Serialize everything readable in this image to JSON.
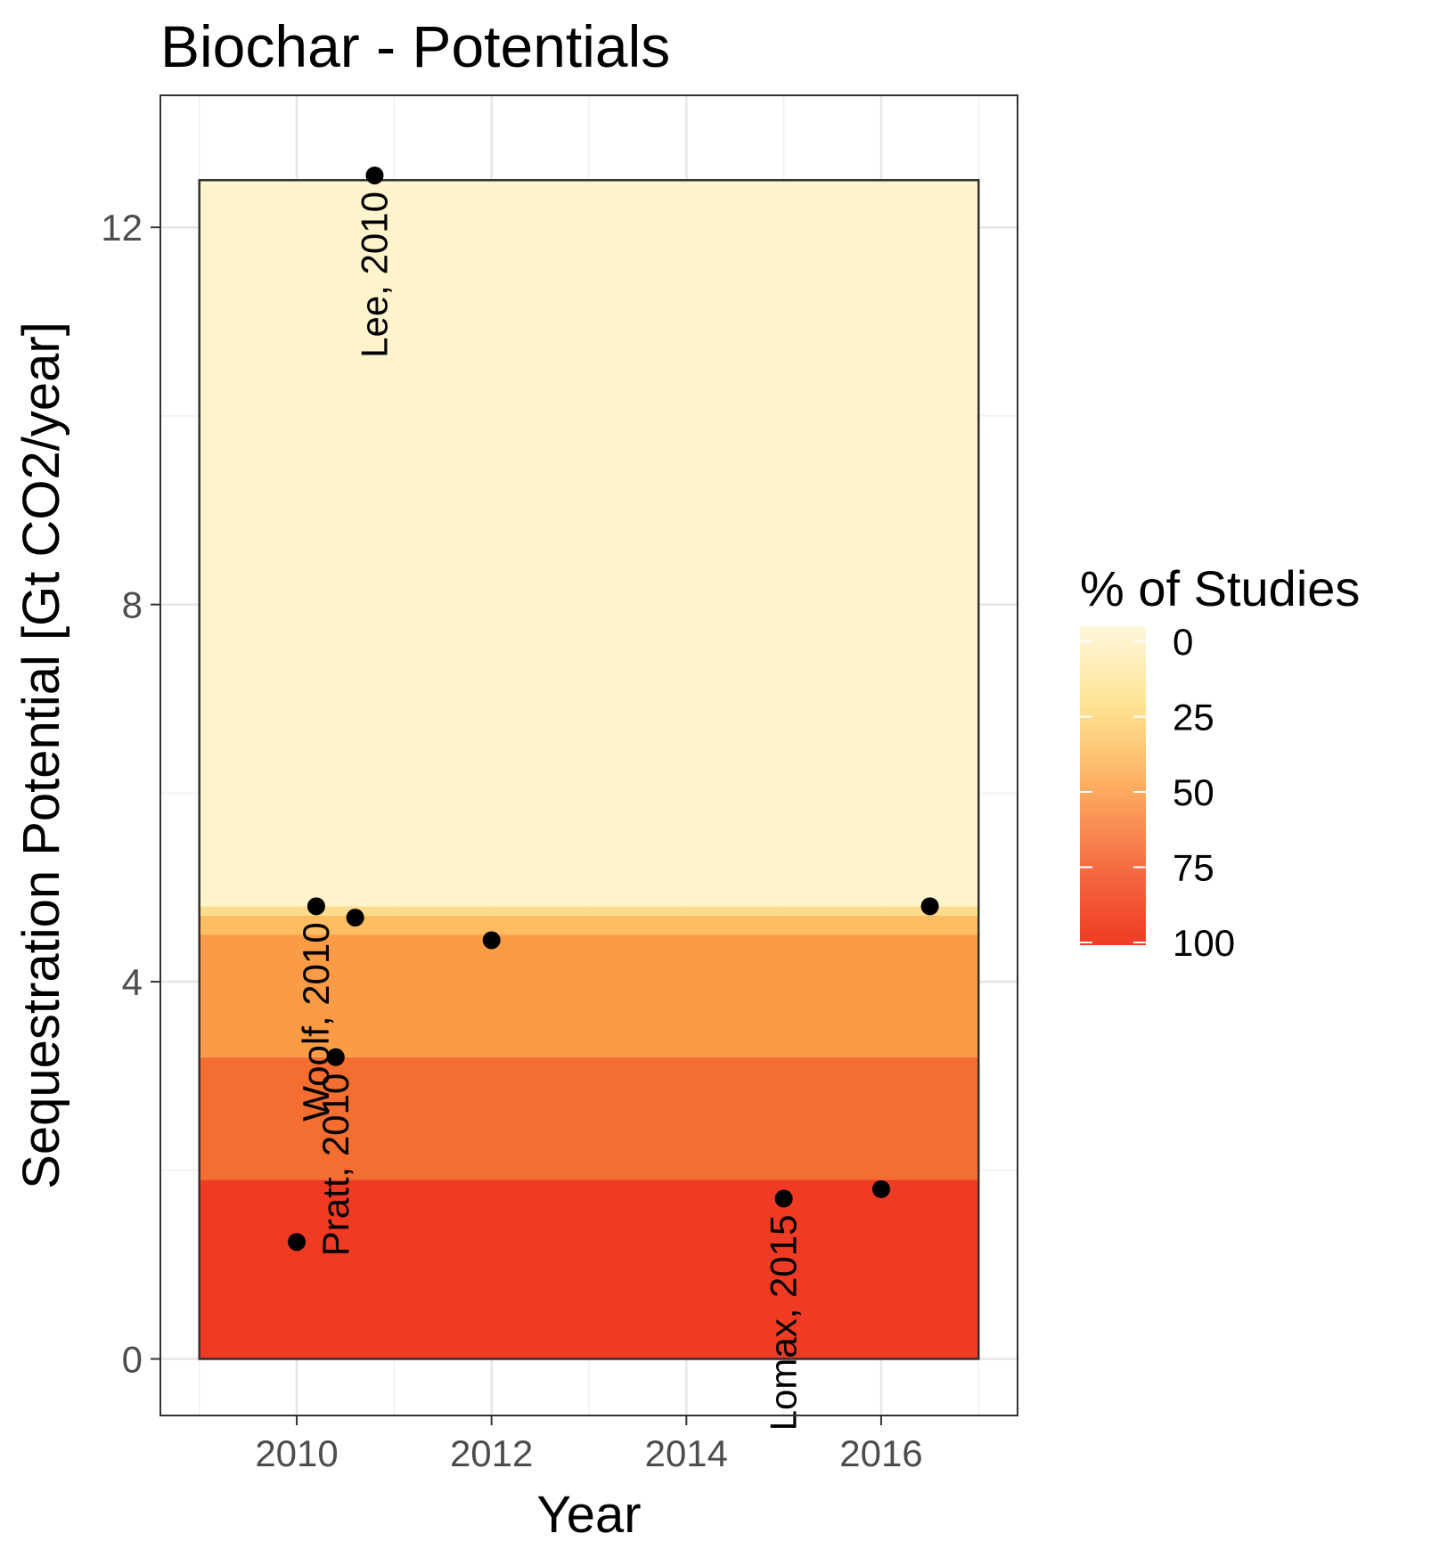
{
  "chart_data": {
    "type": "scatter",
    "title": "Biochar - Potentials",
    "xlabel": "Year",
    "ylabel": "Sequestration Potential [Gt CO2/year]",
    "xlim": [
      2008.6,
      2017.4
    ],
    "ylim": [
      -0.6,
      13.4
    ],
    "xticks": [
      2010,
      2012,
      2014,
      2016
    ],
    "yticks": [
      0,
      4,
      8,
      12
    ],
    "grid": true,
    "legend_position": "right",
    "legend": {
      "title": "% of Studies",
      "ticks": [
        "0",
        "25",
        "50",
        "75",
        "100"
      ],
      "colors": [
        "#FFF7DC",
        "#FEE391",
        "#FDAE61",
        "#F46D43",
        "#EF3B24"
      ]
    },
    "bands": [
      {
        "ymin": 0,
        "ymax": 1.9,
        "color": "#EF3B24"
      },
      {
        "ymin": 1.9,
        "ymax": 3.2,
        "color": "#F46D31"
      },
      {
        "ymin": 3.2,
        "ymax": 4.5,
        "color": "#FB9B45"
      },
      {
        "ymin": 4.5,
        "ymax": 4.7,
        "color": "#FDBD60"
      },
      {
        "ymin": 4.7,
        "ymax": 4.8,
        "color": "#FEDC8F"
      },
      {
        "ymin": 4.8,
        "ymax": 12.5,
        "color": "#FFF4CC"
      }
    ],
    "band_xrange": [
      2009,
      2017
    ],
    "points": [
      {
        "x": 2010.0,
        "y": 1.24
      },
      {
        "x": 2010.2,
        "y": 4.8
      },
      {
        "x": 2010.4,
        "y": 3.2
      },
      {
        "x": 2010.6,
        "y": 4.68
      },
      {
        "x": 2010.8,
        "y": 12.55
      },
      {
        "x": 2012.0,
        "y": 4.44
      },
      {
        "x": 2015.0,
        "y": 1.7
      },
      {
        "x": 2016.0,
        "y": 1.8
      },
      {
        "x": 2016.5,
        "y": 4.8
      }
    ],
    "annotations": [
      {
        "text": "Lee, 2010",
        "x": 2010.8,
        "y": 12.55
      },
      {
        "text": "Woolf, 2010",
        "x": 2010.2,
        "y": 4.8
      },
      {
        "text": "Pratt, 2010",
        "x": 2010.4,
        "y": 3.2
      },
      {
        "text": "Lomax, 2015",
        "x": 2015.0,
        "y": 1.7
      }
    ]
  }
}
